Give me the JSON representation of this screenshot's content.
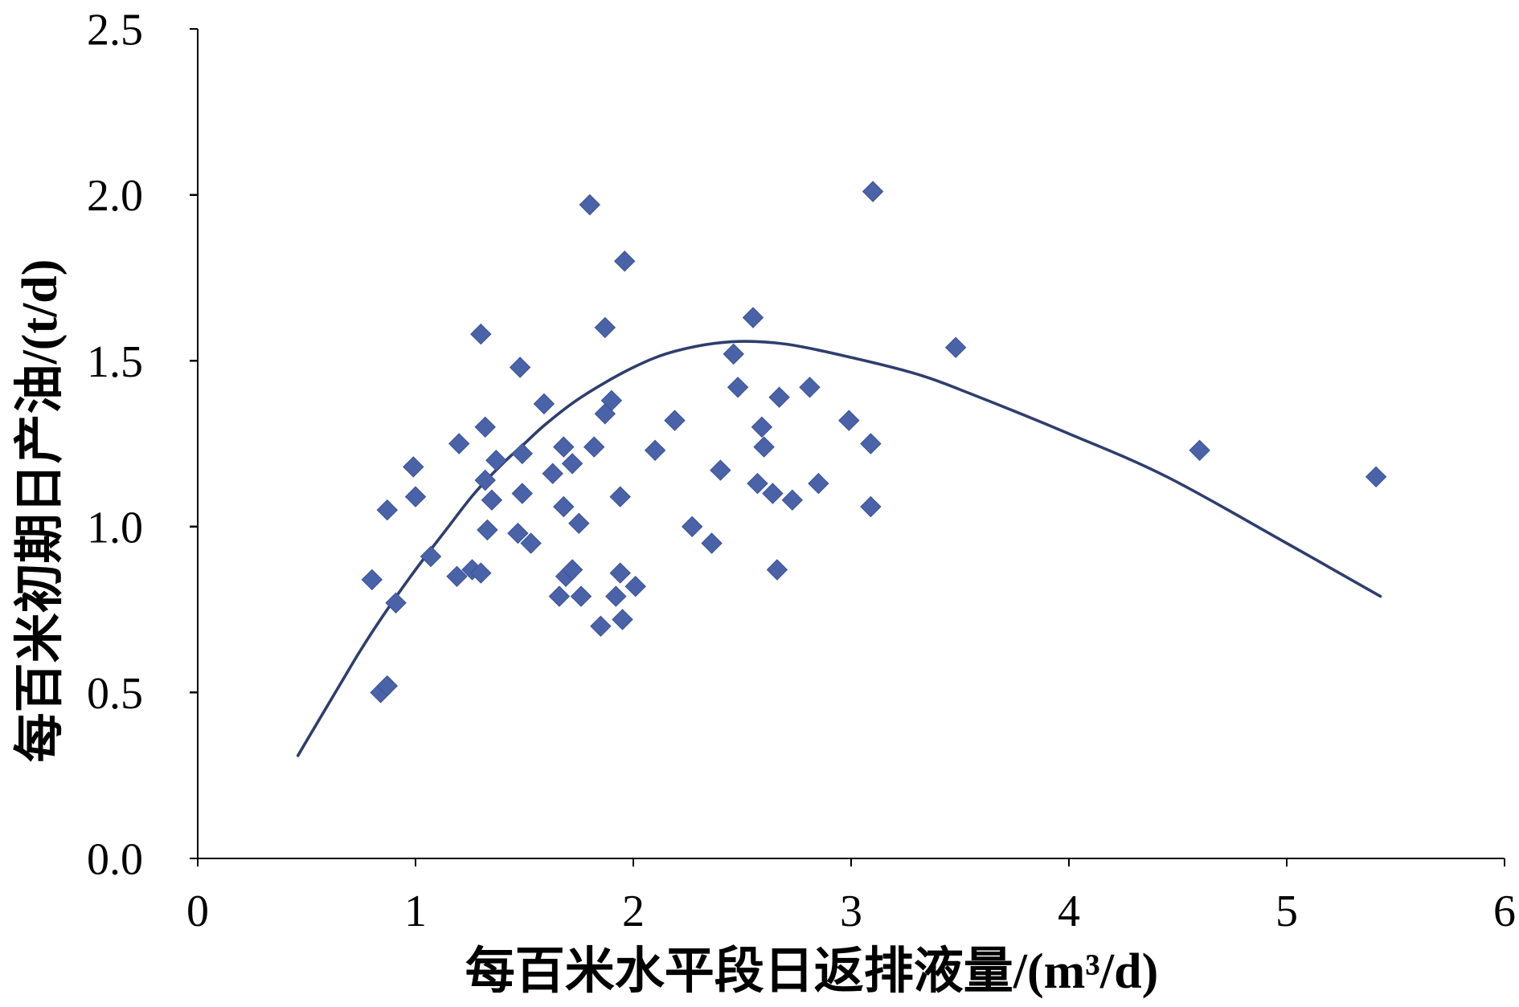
{
  "chart_data": {
    "type": "scatter",
    "xlabel": "每百米水平段日返排液量/(m³/d)",
    "ylabel": "每百米初期日产油/(t/d)",
    "xlim": [
      0,
      6
    ],
    "ylim": [
      0,
      2.5
    ],
    "x_ticks": [
      "0",
      "1",
      "2",
      "3",
      "4",
      "5",
      "6"
    ],
    "y_ticks": [
      "0.0",
      "0.5",
      "1.0",
      "1.5",
      "2.0",
      "2.5"
    ],
    "grid": false,
    "legend": false,
    "series": [
      {
        "type": "scatter",
        "marker": "diamond",
        "color": "#4a63a8",
        "points": [
          [
            0.8,
            0.84
          ],
          [
            0.84,
            0.5
          ],
          [
            0.87,
            0.52
          ],
          [
            0.87,
            1.05
          ],
          [
            0.91,
            0.77
          ],
          [
            0.99,
            1.18
          ],
          [
            1.0,
            1.09
          ],
          [
            1.07,
            0.91
          ],
          [
            1.19,
            0.85
          ],
          [
            1.2,
            1.25
          ],
          [
            1.26,
            0.87
          ],
          [
            1.3,
            0.86
          ],
          [
            1.3,
            1.58
          ],
          [
            1.32,
            1.3
          ],
          [
            1.32,
            1.14
          ],
          [
            1.33,
            0.99
          ],
          [
            1.35,
            1.08
          ],
          [
            1.37,
            1.2
          ],
          [
            1.47,
            0.98
          ],
          [
            1.48,
            1.48
          ],
          [
            1.49,
            1.22
          ],
          [
            1.49,
            1.1
          ],
          [
            1.53,
            0.95
          ],
          [
            1.59,
            1.37
          ],
          [
            1.63,
            1.16
          ],
          [
            1.66,
            0.79
          ],
          [
            1.68,
            1.24
          ],
          [
            1.68,
            1.06
          ],
          [
            1.69,
            0.85
          ],
          [
            1.72,
            1.19
          ],
          [
            1.72,
            0.87
          ],
          [
            1.75,
            1.01
          ],
          [
            1.76,
            0.79
          ],
          [
            1.8,
            1.97
          ],
          [
            1.82,
            1.24
          ],
          [
            1.85,
            0.7
          ],
          [
            1.87,
            1.6
          ],
          [
            1.87,
            1.34
          ],
          [
            1.9,
            1.38
          ],
          [
            1.92,
            0.79
          ],
          [
            1.94,
            1.09
          ],
          [
            1.94,
            0.86
          ],
          [
            1.95,
            0.72
          ],
          [
            1.96,
            1.8
          ],
          [
            2.01,
            0.82
          ],
          [
            2.1,
            1.23
          ],
          [
            2.19,
            1.32
          ],
          [
            2.27,
            1.0
          ],
          [
            2.36,
            0.95
          ],
          [
            2.4,
            1.17
          ],
          [
            2.46,
            1.52
          ],
          [
            2.48,
            1.42
          ],
          [
            2.55,
            1.63
          ],
          [
            2.57,
            1.13
          ],
          [
            2.59,
            1.3
          ],
          [
            2.6,
            1.24
          ],
          [
            2.64,
            1.1
          ],
          [
            2.66,
            0.87
          ],
          [
            2.67,
            1.39
          ],
          [
            2.73,
            1.08
          ],
          [
            2.81,
            1.42
          ],
          [
            2.85,
            1.13
          ],
          [
            2.99,
            1.32
          ],
          [
            3.09,
            1.25
          ],
          [
            3.09,
            1.06
          ],
          [
            3.1,
            2.01
          ],
          [
            3.48,
            1.54
          ],
          [
            4.6,
            1.23
          ],
          [
            5.41,
            1.15
          ]
        ]
      },
      {
        "type": "line",
        "color": "#2e3e6e",
        "points": [
          [
            0.46,
            0.31
          ],
          [
            0.55,
            0.41
          ],
          [
            0.65,
            0.52
          ],
          [
            0.75,
            0.63
          ],
          [
            0.87,
            0.75
          ],
          [
            1.0,
            0.87
          ],
          [
            1.14,
            0.99
          ],
          [
            1.27,
            1.1
          ],
          [
            1.4,
            1.19
          ],
          [
            1.5,
            1.25
          ],
          [
            1.6,
            1.31
          ],
          [
            1.76,
            1.39
          ],
          [
            2.0,
            1.48
          ],
          [
            2.2,
            1.53
          ],
          [
            2.45,
            1.557
          ],
          [
            2.7,
            1.55
          ],
          [
            3.0,
            1.51
          ],
          [
            3.3,
            1.46
          ],
          [
            3.55,
            1.4
          ],
          [
            4.0,
            1.28
          ],
          [
            4.45,
            1.15
          ],
          [
            5.0,
            0.95
          ],
          [
            5.43,
            0.79
          ]
        ]
      }
    ]
  }
}
